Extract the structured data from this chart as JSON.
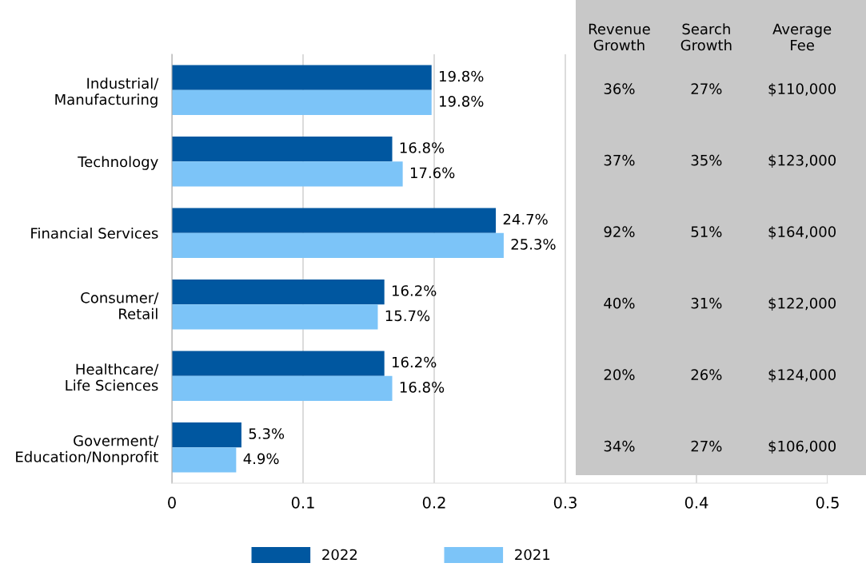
{
  "chart_data": [
    {
      "type": "bar",
      "orientation": "horizontal",
      "categories": [
        "Industrial/\nManufacturing",
        "Technology",
        "Financial Services",
        "Consumer/\nRetail",
        "Healthcare/\nLife Sciences",
        "Goverment/\nEducation/Nonprofit"
      ],
      "series": [
        {
          "name": "2022",
          "color": "#0057a0",
          "values": [
            0.198,
            0.168,
            0.247,
            0.162,
            0.162,
            0.053
          ],
          "value_labels": [
            "19.8%",
            "16.8%",
            "24.7%",
            "16.2%",
            "16.2%",
            "5.3%"
          ]
        },
        {
          "name": "2021",
          "color": "#7cc4f8",
          "values": [
            0.198,
            0.176,
            0.253,
            0.157,
            0.168,
            0.049
          ],
          "value_labels": [
            "19.8%",
            "17.6%",
            "25.3%",
            "15.7%",
            "16.8%",
            "4.9%"
          ]
        }
      ],
      "xlim": [
        0,
        0.5
      ],
      "xticks": [
        0,
        0.1,
        0.2,
        0.3,
        0.4,
        0.5
      ],
      "grid": "x",
      "legend": "bottom"
    },
    {
      "type": "other",
      "categories": [
        "Revenue\nGrowth",
        "Search\nGrowth",
        "Average\nFee"
      ],
      "cell_labels": [
        [
          "36%",
          "27%",
          "$110,000"
        ],
        [
          "37%",
          "35%",
          "$123,000"
        ],
        [
          "92%",
          "51%",
          "$164,000"
        ],
        [
          "40%",
          "31%",
          "$122,000"
        ],
        [
          "20%",
          "26%",
          "$124,000"
        ],
        [
          "34%",
          "27%",
          "$106,000"
        ]
      ],
      "color": "#c8c8c8"
    }
  ]
}
